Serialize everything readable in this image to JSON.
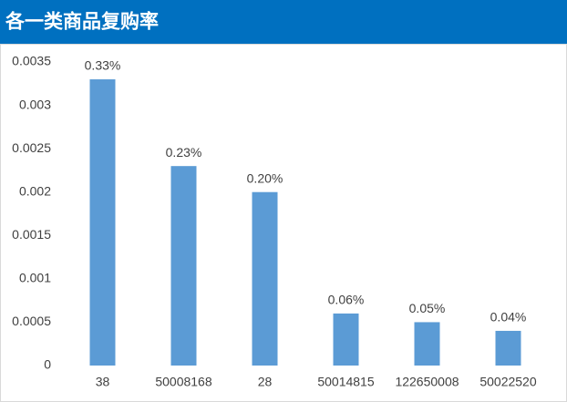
{
  "chart_data": {
    "type": "bar",
    "title": "各一类商品复购率",
    "categories": [
      "38",
      "50008168",
      "28",
      "50014815",
      "122650008",
      "50022520"
    ],
    "values": [
      0.0033,
      0.0023,
      0.002,
      0.0006,
      0.0005,
      0.0004
    ],
    "value_labels": [
      "0.33%",
      "0.23%",
      "0.20%",
      "0.06%",
      "0.05%",
      "0.04%"
    ],
    "color": "#5b9bd5",
    "ylim": [
      0,
      0.0035
    ],
    "yticks": [
      0,
      0.0005,
      0.001,
      0.0015,
      0.002,
      0.0025,
      0.003,
      0.0035
    ],
    "grid": false
  }
}
